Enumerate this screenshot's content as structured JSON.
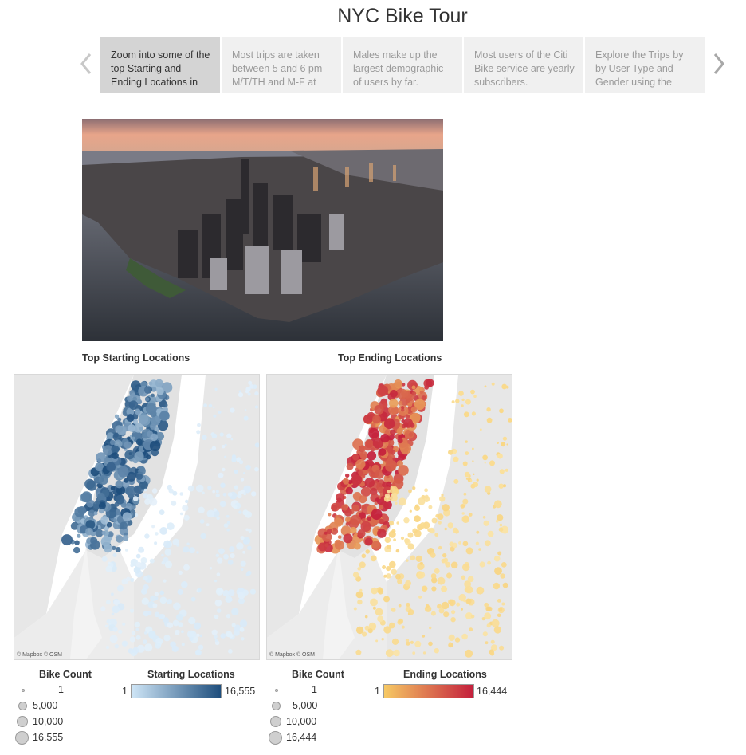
{
  "title": "NYC Bike Tour",
  "story_points": [
    {
      "text": "Zoom into some of the top Starting and Ending Locations in",
      "active": true
    },
    {
      "text": "Most trips are taken between 5 and 6 pm M/T/TH and M-F at",
      "active": false
    },
    {
      "text": "Males make up the largest demographic of users by far.",
      "active": false
    },
    {
      "text": "Most users of the Citi Bike service are yearly subscribers.",
      "active": false
    },
    {
      "text": "Explore the Trips by by User Type and Gender using the",
      "active": false
    }
  ],
  "maps": {
    "start": {
      "title": "Top Starting Locations",
      "attribution": "© Mapbox © OSM"
    },
    "end": {
      "title": "Top Ending Locations",
      "attribution": "© Mapbox © OSM"
    }
  },
  "legends": {
    "start": {
      "size_title": "Bike Count",
      "size_values": [
        "1",
        "5,000",
        "10,000",
        "16,555"
      ],
      "color_title": "Starting Locations",
      "color_min": "1",
      "color_max": "16,555",
      "color_from": "#cfe6f7",
      "color_to": "#1e4e7d"
    },
    "end": {
      "size_title": "Bike Count",
      "size_values": [
        "1",
        "5,000",
        "10,000",
        "16,444"
      ],
      "color_title": "Ending Locations",
      "color_min": "1",
      "color_max": "16,444",
      "color_from": "#f6c964",
      "color_to": "#c41f3c"
    }
  }
}
